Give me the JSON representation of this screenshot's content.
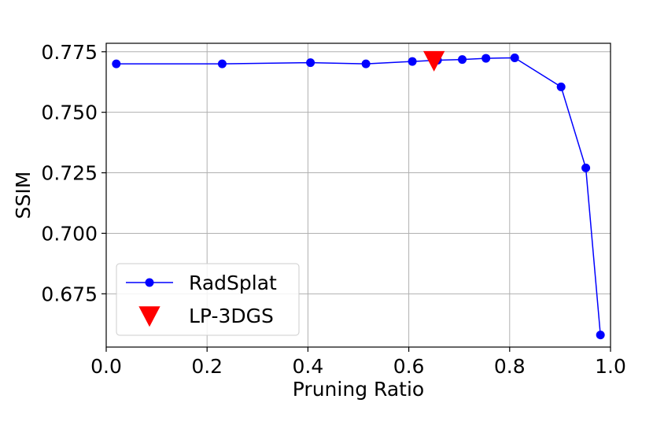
{
  "chart_data": {
    "type": "line",
    "xlabel": "Pruning Ratio",
    "ylabel": "SSIM",
    "xlim": [
      0.0,
      1.0
    ],
    "ylim": [
      0.653,
      0.7785
    ],
    "xticks": [
      "0.0",
      "0.2",
      "0.4",
      "0.6",
      "0.8",
      "1.0"
    ],
    "yticks": [
      "0.675",
      "0.700",
      "0.725",
      "0.750",
      "0.775"
    ],
    "grid": true,
    "legend_position": "lower-left",
    "series": [
      {
        "name": "RadSplat",
        "type": "line",
        "color": "#0000ff",
        "marker": "circle",
        "x": [
          0.02,
          0.23,
          0.405,
          0.515,
          0.607,
          0.657,
          0.706,
          0.753,
          0.81,
          0.902,
          0.951,
          0.98
        ],
        "y": [
          0.77,
          0.77,
          0.7705,
          0.77,
          0.771,
          0.7715,
          0.7718,
          0.7723,
          0.7725,
          0.7605,
          0.727,
          0.658
        ]
      },
      {
        "name": "LP-3DGS",
        "type": "scatter",
        "color": "#ff0000",
        "marker": "triangle-down",
        "x": [
          0.65
        ],
        "y": [
          0.7715
        ]
      }
    ]
  }
}
